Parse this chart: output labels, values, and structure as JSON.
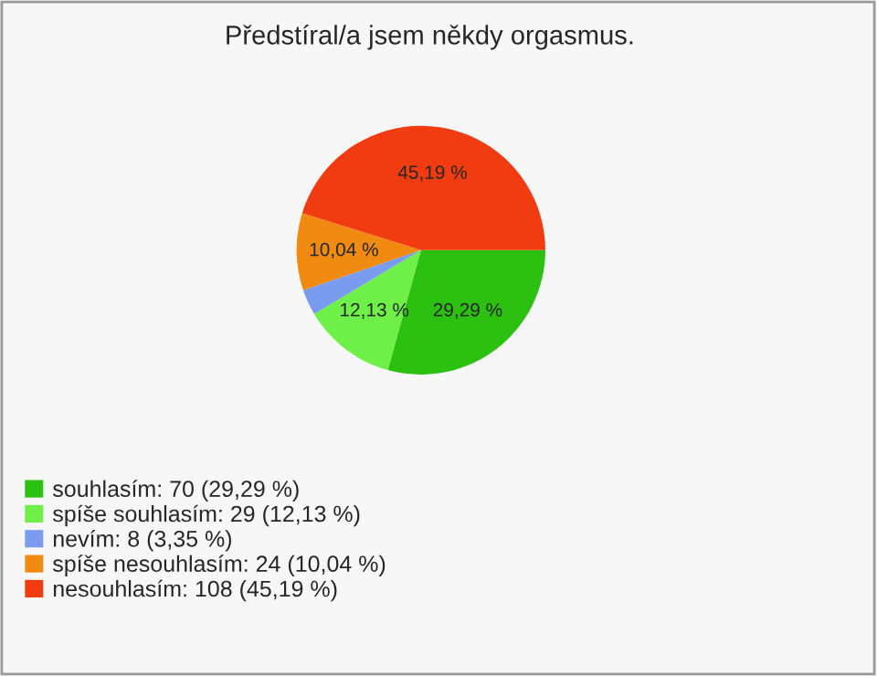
{
  "chart_data": {
    "type": "pie",
    "title": "Předstíral/a jsem někdy orgasmus.",
    "categories": [
      "souhlasím: 70 (29,29 %)",
      "spíše souhlasím: 29 (12,13 %)",
      "nevím: 8 (3,35 %)",
      "spíše nesouhlasím: 24 (10,04 %)",
      "nesouhlasím: 108 (45,19 %)"
    ],
    "values": [
      29.29,
      12.13,
      3.35,
      10.04,
      45.19
    ],
    "colors": [
      "#2cc010",
      "#6ef048",
      "#7a9cf0",
      "#f08a10",
      "#f03c10"
    ],
    "value_labels": [
      "29,29 %",
      "12,13 %",
      null,
      "10,04 %",
      "45,19 %"
    ],
    "legend": "bottom left"
  }
}
